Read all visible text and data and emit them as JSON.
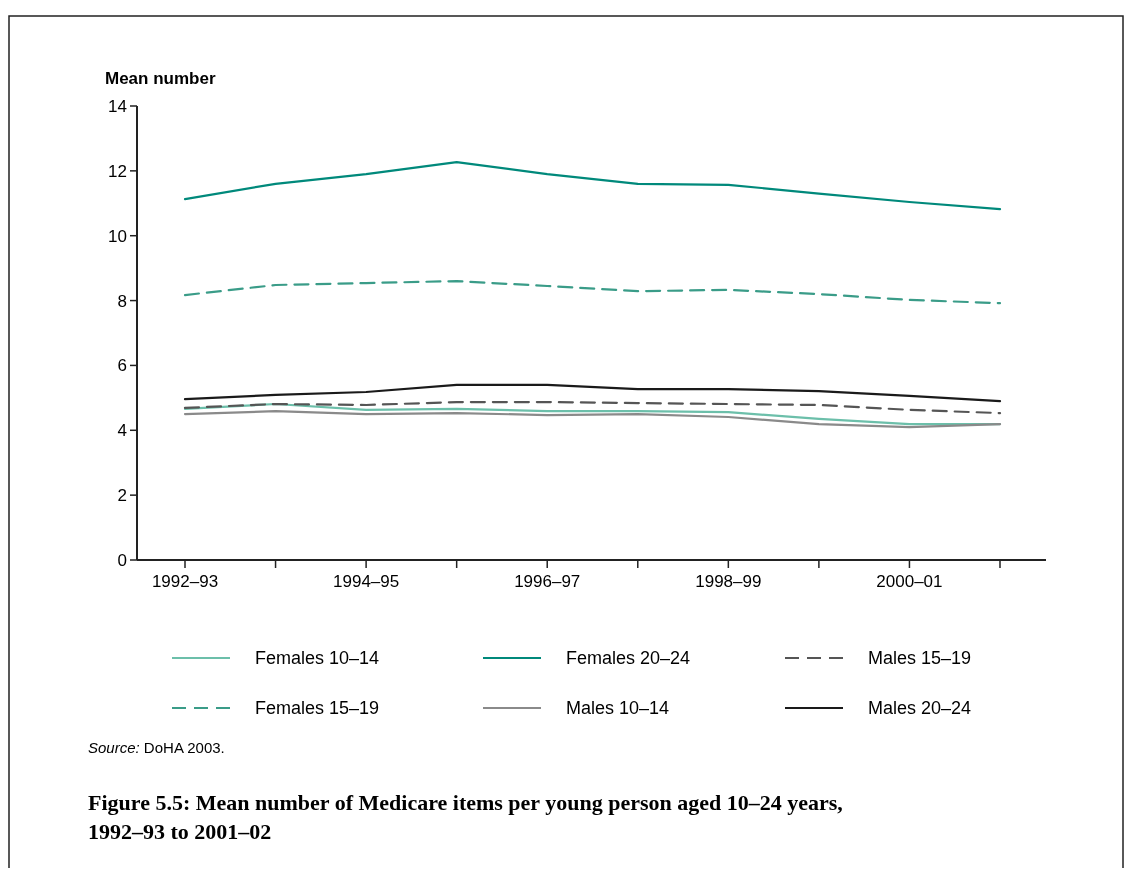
{
  "chart_data": {
    "type": "line",
    "title": "Figure 5.5: Mean number of Medicare items per young person aged 10–24 years, 1992–93 to 2001–02",
    "ylabel": "Mean number",
    "categories": [
      "1992–93",
      null,
      "1994–95",
      null,
      "1996–97",
      null,
      "1998–99",
      null,
      "2000–01",
      null
    ],
    "series": [
      {
        "name": "Females 10–14",
        "color": "#6cbfaa",
        "line_style": "solid",
        "values": [
          4.66,
          4.81,
          4.63,
          4.66,
          4.59,
          4.59,
          4.56,
          4.35,
          4.19,
          4.19
        ]
      },
      {
        "name": "Females 15–19",
        "color": "#3a9c88",
        "line_style": "dashed",
        "values": [
          8.17,
          8.48,
          8.54,
          8.6,
          8.45,
          8.29,
          8.33,
          8.2,
          8.02,
          7.92
        ]
      },
      {
        "name": "Females 20–24",
        "color": "#00897b",
        "line_style": "solid",
        "values": [
          11.13,
          11.6,
          11.9,
          12.27,
          11.9,
          11.6,
          11.57,
          11.3,
          11.04,
          10.82
        ]
      },
      {
        "name": "Males 10–14",
        "color": "#8a8a8a",
        "line_style": "solid",
        "values": [
          4.5,
          4.59,
          4.5,
          4.53,
          4.47,
          4.5,
          4.41,
          4.19,
          4.1,
          4.19
        ]
      },
      {
        "name": "Males 15–19",
        "color": "#555555",
        "line_style": "dashed",
        "values": [
          4.69,
          4.81,
          4.78,
          4.87,
          4.87,
          4.84,
          4.81,
          4.78,
          4.63,
          4.53
        ]
      },
      {
        "name": "Males 20–24",
        "color": "#1a1a1a",
        "line_style": "solid",
        "values": [
          4.96,
          5.09,
          5.18,
          5.4,
          5.4,
          5.27,
          5.27,
          5.21,
          5.06,
          4.9
        ]
      }
    ],
    "ylim": [
      0,
      14
    ],
    "yticks": [
      0,
      2,
      4,
      6,
      8,
      10,
      12,
      14
    ],
    "grid": false,
    "legend": "bottom",
    "marker": "none",
    "annotations": [
      "Source: DoHA 2003."
    ]
  }
}
